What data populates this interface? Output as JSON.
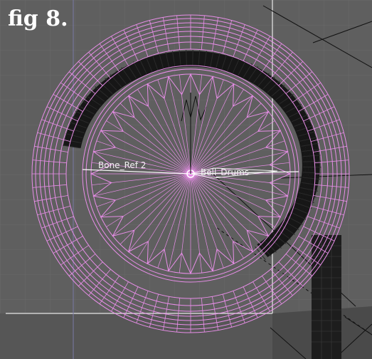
{
  "figure": {
    "label": "fig 8."
  },
  "viewport": {
    "background_color": "#5f5f5f",
    "grid_color": "#6b6b6b",
    "selection_box_color": "#c9c9c9",
    "dark_region_color": "#3a3a3a"
  },
  "mesh": {
    "color": "#e88ee8",
    "spoke_count": 56,
    "outer_rings": 8,
    "ring_segments": 72
  },
  "bones": {
    "left_label": "Bone_Ref 2",
    "right_label": "Bell_Drums",
    "label_color": "#f2f2f2"
  }
}
